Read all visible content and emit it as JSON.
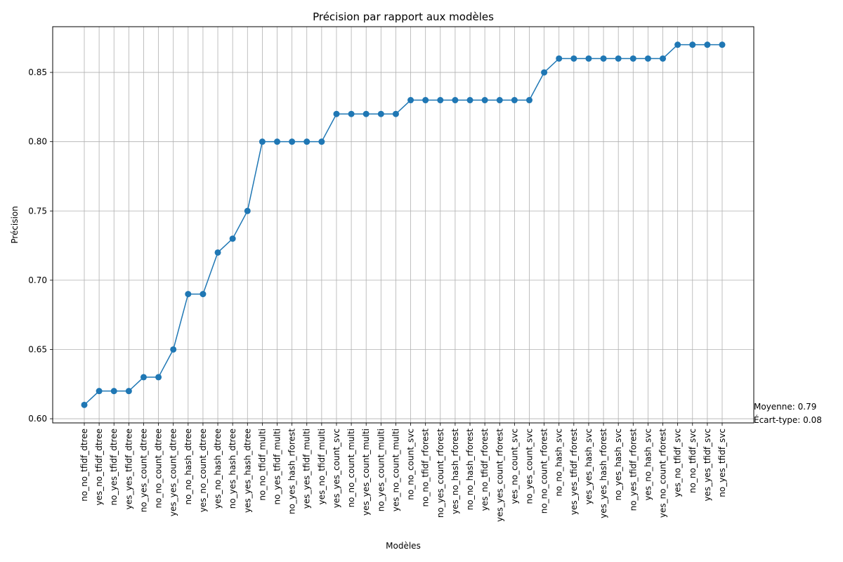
{
  "chart_data": {
    "type": "line",
    "title": "Précision par rapport aux modèles",
    "xlabel": "Modèles",
    "ylabel": "Précision",
    "ylim": [
      0.597,
      0.883
    ],
    "yticks": [
      0.6,
      0.65,
      0.7,
      0.75,
      0.8,
      0.85
    ],
    "ytick_labels": [
      "0.60",
      "0.65",
      "0.70",
      "0.75",
      "0.80",
      "0.85"
    ],
    "grid": true,
    "color": "#1f77b4",
    "marker": "circle",
    "categories": [
      "no_no_tfidf_dtree",
      "yes_no_tfidf_dtree",
      "no_yes_tfidf_dtree",
      "yes_yes_tfidf_dtree",
      "no_yes_count_dtree",
      "no_no_count_dtree",
      "yes_yes_count_dtree",
      "no_no_hash_dtree",
      "yes_no_count_dtree",
      "yes_no_hash_dtree",
      "no_yes_hash_dtree",
      "yes_yes_hash_dtree",
      "no_no_tfidf_multi",
      "no_yes_tfidf_multi",
      "no_yes_hash_rforest",
      "yes_yes_tfidf_multi",
      "yes_no_tfidf_multi",
      "yes_yes_count_svc",
      "no_no_count_multi",
      "yes_yes_count_multi",
      "no_yes_count_multi",
      "yes_no_count_multi",
      "no_no_count_svc",
      "no_no_tfidf_rforest",
      "no_yes_count_rforest",
      "yes_no_hash_rforest",
      "no_no_hash_rforest",
      "yes_no_tfidf_rforest",
      "yes_yes_count_rforest",
      "yes_no_count_svc",
      "no_yes_count_svc",
      "no_no_count_rforest",
      "no_no_hash_svc",
      "yes_yes_tfidf_rforest",
      "yes_yes_hash_svc",
      "yes_yes_hash_rforest",
      "no_yes_hash_svc",
      "no_yes_tfidf_rforest",
      "yes_no_hash_svc",
      "yes_no_count_rforest",
      "yes_no_tfidf_svc",
      "no_no_tfidf_svc",
      "yes_yes_tfidf_svc",
      "no_yes_tfidf_svc"
    ],
    "values": [
      0.61,
      0.62,
      0.62,
      0.62,
      0.63,
      0.63,
      0.65,
      0.69,
      0.69,
      0.72,
      0.73,
      0.75,
      0.8,
      0.8,
      0.8,
      0.8,
      0.8,
      0.82,
      0.82,
      0.82,
      0.82,
      0.82,
      0.83,
      0.83,
      0.83,
      0.83,
      0.83,
      0.83,
      0.83,
      0.83,
      0.83,
      0.85,
      0.86,
      0.86,
      0.86,
      0.86,
      0.86,
      0.86,
      0.86,
      0.86,
      0.87,
      0.87,
      0.87,
      0.87
    ],
    "annotations": {
      "mean": "Moyenne: 0.79",
      "std": "Écart-type: 0.08"
    }
  }
}
